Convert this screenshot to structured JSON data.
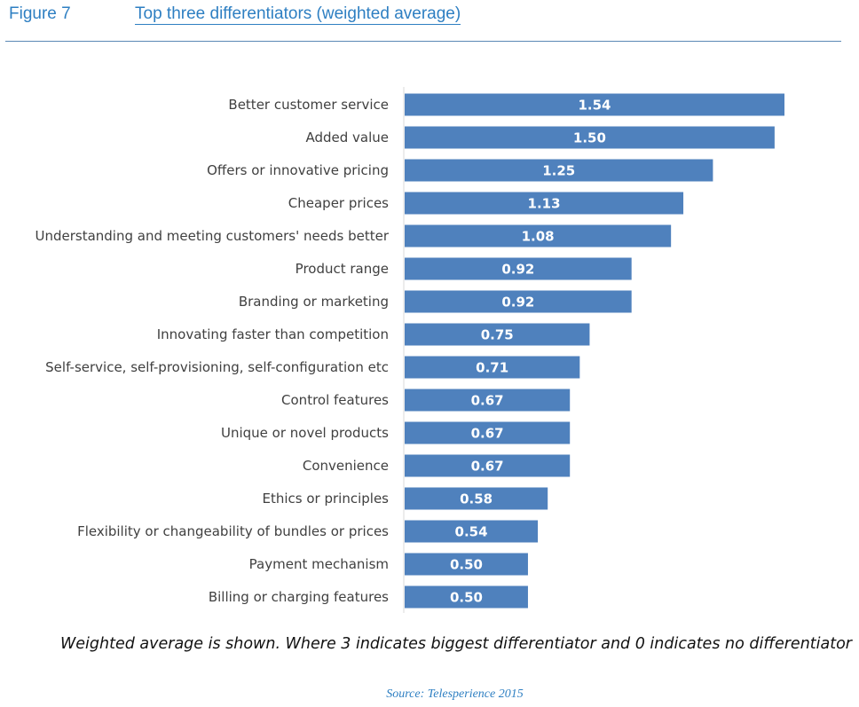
{
  "header": {
    "figure_label": "Figure 7",
    "title": "Top three differentiators (weighted average)"
  },
  "colors": {
    "bar": "#4f81bd",
    "accent": "#2e7fc2",
    "axis": "#d9d9d9"
  },
  "chart_data": {
    "type": "bar",
    "orientation": "horizontal",
    "title": "Top three differentiators (weighted average)",
    "categories": [
      "Better customer service",
      "Added value",
      "Offers or innovative pricing",
      "Cheaper prices",
      "Understanding and meeting customers' needs better",
      "Product range",
      "Branding or marketing",
      "Innovating faster than competition",
      "Self-service, self-provisioning, self-configuration etc",
      "Control features",
      "Unique or novel products",
      "Convenience",
      "Ethics or principles",
      "Flexibility or changeability of bundles or prices",
      "Payment mechanism",
      "Billing or charging features"
    ],
    "values": [
      1.54,
      1.5,
      1.25,
      1.13,
      1.08,
      0.92,
      0.92,
      0.75,
      0.71,
      0.67,
      0.67,
      0.67,
      0.58,
      0.54,
      0.5,
      0.5
    ],
    "value_labels": [
      "1.54",
      "1.50",
      "1.25",
      "1.13",
      "1.08",
      "0.92",
      "0.92",
      "0.75",
      "0.71",
      "0.67",
      "0.67",
      "0.67",
      "0.58",
      "0.54",
      "0.50",
      "0.50"
    ],
    "xlim": [
      0,
      1.54
    ],
    "grid": false,
    "legend": "none"
  },
  "footer": {
    "note": "Weighted average is shown. Where 3 indicates biggest differentiator and 0 indicates no differentiator",
    "source": "Source: Telesperience 2015"
  }
}
